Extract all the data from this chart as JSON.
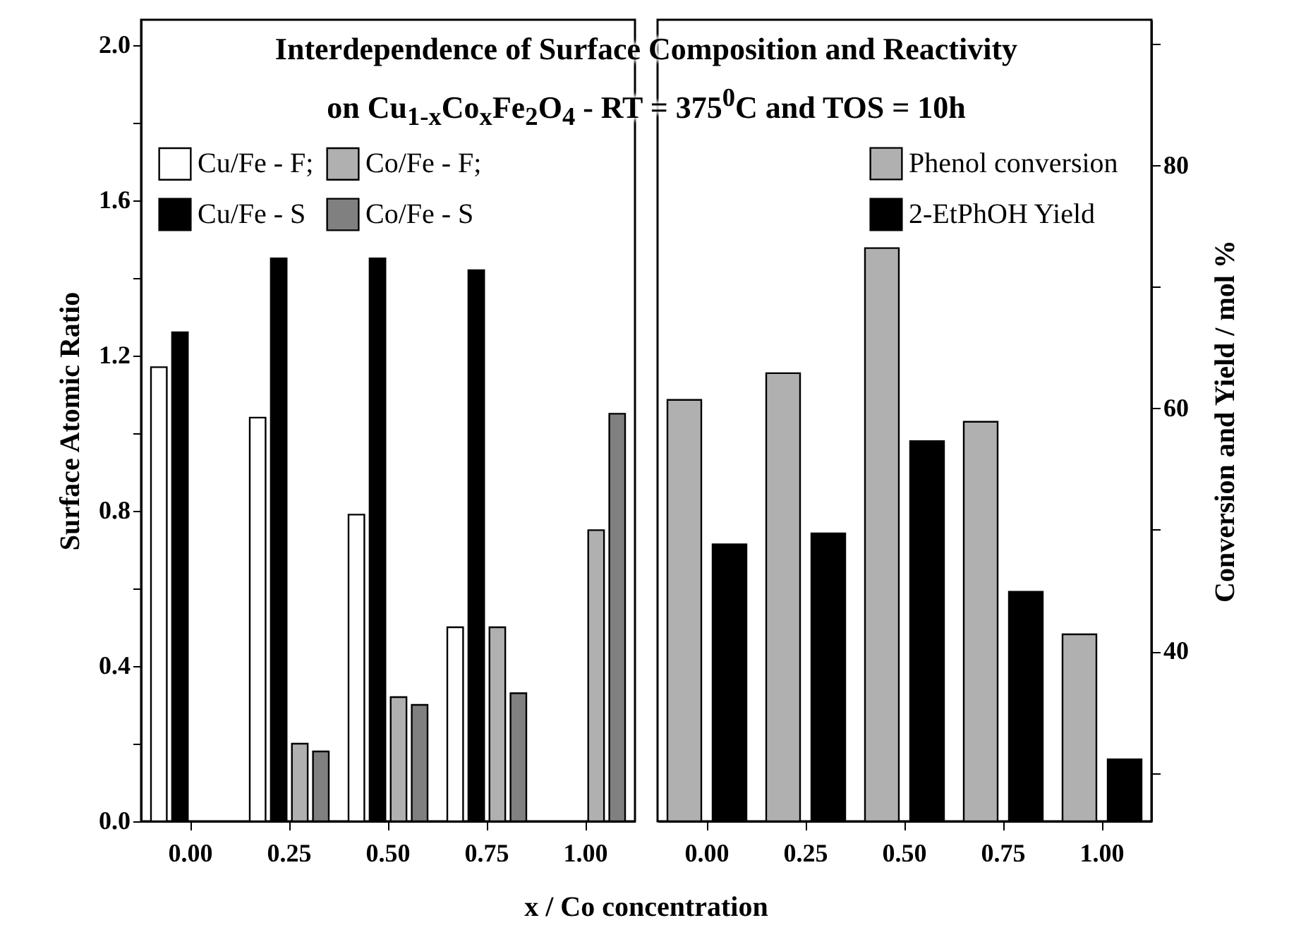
{
  "chart_data": [
    {
      "type": "bar",
      "title": "Interdependence of Surface Composition and Reactivity on Cu$_{1-x}$Co$_{x}$Fe$_{2}$O$_{4}$ - RT = 375$^{0}$C and TOS = 10h",
      "xlabel": "x / Co concentration",
      "ylabel": "Surface Atomic Ratio",
      "categories": [
        "0.00",
        "0.25",
        "0.50",
        "0.75",
        "1.00"
      ],
      "series": [
        {
          "name": "Cu/Fe - F;",
          "color": "#ffffff",
          "values": [
            1.17,
            1.04,
            0.79,
            0.5,
            null
          ]
        },
        {
          "name": "Cu/Fe - S",
          "color": "#000000",
          "values": [
            1.26,
            1.45,
            1.45,
            1.42,
            null
          ]
        },
        {
          "name": "Co/Fe - F;",
          "color": "#b0b0b0",
          "values": [
            null,
            0.2,
            0.32,
            0.5,
            0.75
          ]
        },
        {
          "name": "Co/Fe - S",
          "color": "#808080",
          "values": [
            null,
            0.18,
            0.3,
            0.33,
            1.05
          ]
        }
      ],
      "ylim": [
        0,
        2.065
      ],
      "yticks": [
        {
          "value": 0,
          "label": "0.0"
        },
        {
          "value": 0.2,
          "label": null
        },
        {
          "value": 0.4,
          "label": "0.4"
        },
        {
          "value": 0.6,
          "label": null
        },
        {
          "value": 0.8,
          "label": "0.8"
        },
        {
          "value": 1.0,
          "label": null
        },
        {
          "value": 1.2,
          "label": "1.2"
        },
        {
          "value": 1.4,
          "label": null
        },
        {
          "value": 1.6,
          "label": "1.6"
        },
        {
          "value": 1.8,
          "label": null
        },
        {
          "value": 2.0,
          "label": "2.0"
        }
      ],
      "legend": "top left",
      "grid": false
    },
    {
      "type": "bar",
      "y2label": "Conversion and Yield / mol %",
      "categories": [
        "0.00",
        "0.25",
        "0.50",
        "0.75",
        "1.00"
      ],
      "series": [
        {
          "name": "Phenol conversion",
          "color": "#b0b0b0",
          "axis": "y2",
          "values": [
            60.7,
            62.9,
            73.2,
            58.9,
            41.4
          ]
        },
        {
          "name": "2-EtPhOH Yield",
          "color": "#000000",
          "axis": "y2",
          "values": [
            48.8,
            49.7,
            57.3,
            44.9,
            31.1
          ]
        }
      ],
      "y2lim": [
        26,
        92
      ],
      "y2ticks": [
        {
          "value": 30,
          "label": null
        },
        40,
        {
          "value": 50,
          "label": null
        },
        60,
        {
          "value": 70,
          "label": null
        },
        80,
        {
          "value": 90,
          "label": null
        }
      ],
      "legend": "top right",
      "grid": false
    }
  ]
}
